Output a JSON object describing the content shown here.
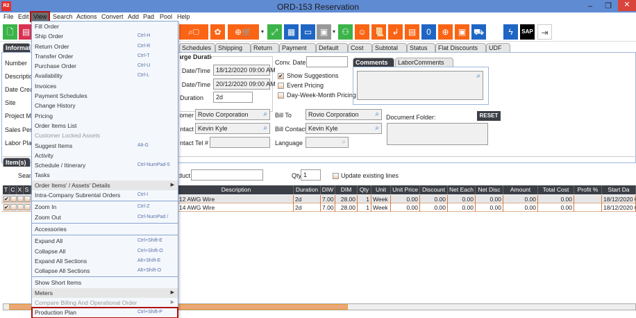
{
  "window": {
    "title": "ORD-153 Reservation",
    "logo": "R2",
    "minimize": "–",
    "maximize": "❐",
    "close": "✕"
  },
  "menubar": [
    "File",
    "Edit",
    "View",
    "Search",
    "Actions",
    "Convert",
    "Add",
    "Pad",
    "Pool",
    "Help"
  ],
  "toolbar_icons": [
    "new-document-icon",
    "print-icon",
    "search-box-icon",
    "gears-icon",
    "add-cart-po-icon",
    "expand-icon",
    "hierarchy-icon",
    "comment-icon",
    "calendar-icon",
    "org-chart-icon",
    "smiley-icon",
    "scroll-icon",
    "return-icon",
    "box-icon",
    "zero-message-icon",
    "coins-add-icon",
    "safe-icon",
    "delivery-truck-icon",
    "lightning-icon",
    "sap-icon",
    "exit-icon"
  ],
  "toolbar": {
    "sap_label": "SAP"
  },
  "tabs": {
    "information": "Information",
    "items": [
      "Schedules",
      "Shipping",
      "Return",
      "Payment",
      "Default",
      "Cost",
      "Subtotal",
      "Status",
      "Flat Discounts",
      "UDF"
    ]
  },
  "info": {
    "left_labels": [
      "Number",
      "Description",
      "Date Created",
      "Site",
      "Project Mgr",
      "Sales Person",
      "Labor Planner"
    ],
    "charge_duration": "Charge Duration",
    "start_label": "Start Date/Time",
    "start_value": "18/12/2020 09:00 AM",
    "end_label": "End Date/Time",
    "end_value": "20/12/2020 09:00 AM",
    "duration_label": "Duration",
    "duration_value": "2d",
    "conv_date_label": "Conv. Date",
    "conv_date_value": "",
    "show_suggestions": "Show Suggestions",
    "show_suggestions_checked": true,
    "event_pricing": "Event Pricing",
    "event_pricing_checked": false,
    "dwm_pricing": "Day-Week-Month Pricing",
    "dwm_pricing_checked": false,
    "comments_tabs": [
      "Comments",
      "LaborComments"
    ],
    "customer_label": "Customer",
    "customer_value": "Rovio Corporation",
    "contact_label": "Contact",
    "contact_value": "Kevin Kyle",
    "contact_tel_label": "Contact Tel #",
    "contact_tel_value": "",
    "bill_to_label": "Bill To",
    "bill_to_value": "Rovio Corporation",
    "bill_contact_label": "Bill Contact",
    "bill_contact_value": "Kevin Kyle",
    "language_label": "Language",
    "language_value": "",
    "document_folder_label": "Document Folder:",
    "reset": "RESET"
  },
  "items": {
    "header": "Item(s)",
    "search_label": "Search",
    "product_label": "Product",
    "product_value": "",
    "qty_label": "Qty",
    "qty_value": "1",
    "update_existing": "Update existing lines",
    "update_checked": false,
    "columns": [
      "T",
      "C",
      "X",
      "S",
      "Description",
      "Duration",
      "DIW",
      "DIM",
      "Qty",
      "Unit",
      "Unit Price",
      "Discount",
      "Net Each",
      "Net Disc",
      "Amount",
      "Total Cost",
      "Profit %",
      "Start Da"
    ],
    "rows": [
      {
        "description": "12 AWG Wire",
        "duration": "2d",
        "diw": "7.00",
        "dim": "28.00",
        "qty": "1",
        "unit": "Week",
        "unit_price": "0.00",
        "discount": "0.00",
        "net_each": "0.00",
        "net_disc": "0.00",
        "amount": "0.00",
        "total_cost": "0.00",
        "profit": "",
        "start": "18/12/2020 0"
      },
      {
        "description": "14 AWG Wire",
        "duration": "2d",
        "diw": "7.00",
        "dim": "28.00",
        "qty": "1",
        "unit": "Week",
        "unit_price": "0.00",
        "discount": "0.00",
        "net_each": "0.00",
        "net_disc": "0.00",
        "amount": "0.00",
        "total_cost": "0.00",
        "profit": "",
        "start": "18/12/2020 0"
      }
    ]
  },
  "view_menu": [
    {
      "label": "Fill Order",
      "shortcut": ""
    },
    {
      "label": "Ship Order",
      "shortcut": "Ctrl-H"
    },
    {
      "label": "Return Order",
      "shortcut": "Ctrl-R"
    },
    {
      "label": "Transfer Order",
      "shortcut": "Ctrl-T"
    },
    {
      "label": "Purchase Order",
      "shortcut": "Ctrl-U"
    },
    {
      "label": "Availability",
      "shortcut": "Ctrl-L"
    },
    {
      "label": "Invoices",
      "shortcut": ""
    },
    {
      "label": "Payment Schedules",
      "shortcut": ""
    },
    {
      "label": "Change History",
      "shortcut": ""
    },
    {
      "label": "Pricing",
      "shortcut": ""
    },
    {
      "label": "Order Items List",
      "shortcut": ""
    },
    {
      "label": "Customer Locked Assets",
      "shortcut": "",
      "disabled": true
    },
    {
      "label": "Suggest Items",
      "shortcut": "Alt-G"
    },
    {
      "label": "Activity",
      "shortcut": ""
    },
    {
      "label": "Schedule / Itinerary",
      "shortcut": "Ctrl-NumPad-5"
    },
    {
      "label": "Tasks",
      "shortcut": ""
    },
    {
      "label": "Order Items' / Assets' Details",
      "shortcut": "",
      "submenu": true,
      "highlight": true
    },
    {
      "label": "Intra-Company Subrental Orders",
      "shortcut": "Ctrl-I"
    },
    {
      "sep": true
    },
    {
      "label": "Zoom In",
      "shortcut": "Ctrl-Z"
    },
    {
      "label": "Zoom Out",
      "shortcut": "Ctrl-NumPad /"
    },
    {
      "sep": true
    },
    {
      "label": "Accessories",
      "shortcut": ""
    },
    {
      "sep": true
    },
    {
      "label": "Expand All",
      "shortcut": "Ctrl+Shift-E"
    },
    {
      "label": "Collapse All",
      "shortcut": "Ctrl+Shift-O"
    },
    {
      "label": "Expand All Sections",
      "shortcut": "Alt+Shift-E"
    },
    {
      "label": "Collapse All Sections",
      "shortcut": "Alt+Shift-O"
    },
    {
      "sep": true
    },
    {
      "label": "Show Short Items",
      "shortcut": ""
    },
    {
      "label": "Meters",
      "shortcut": "",
      "submenu": true,
      "highlight": true
    },
    {
      "label": "Compare Billing And Operational Order",
      "shortcut": "",
      "submenu": true,
      "disabled": true
    },
    {
      "label": "Production Plan",
      "shortcut": "Ctrl+Shift-P",
      "selected": true
    }
  ],
  "colors": {
    "titlebar": "#5f8bd3",
    "orange": "#fa6414",
    "green": "#3cb44a",
    "blue": "#1f66c4",
    "dark_header": "#3c3f46",
    "highlight_border": "#b01010"
  }
}
